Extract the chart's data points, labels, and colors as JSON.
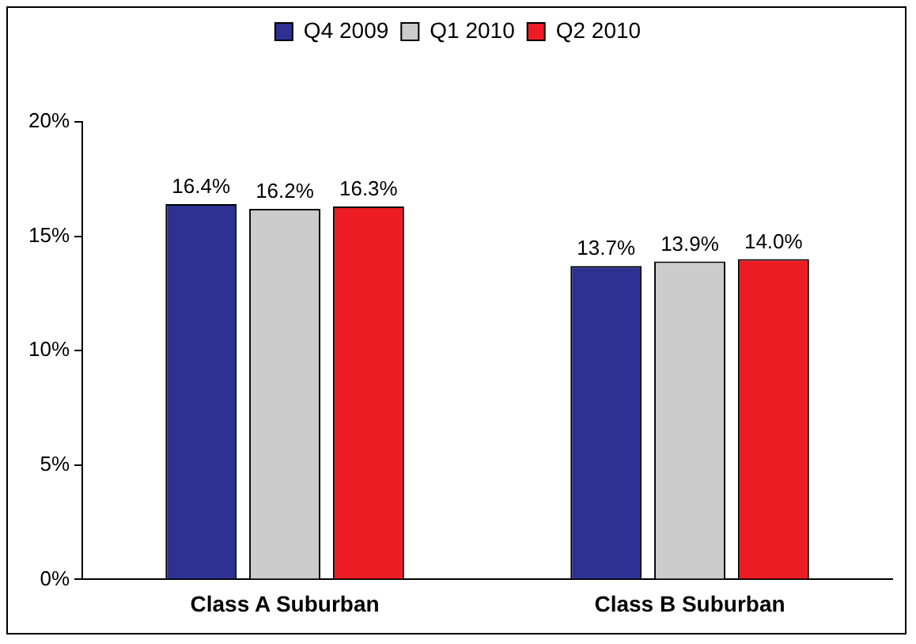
{
  "chart_data": {
    "type": "bar",
    "categories": [
      "Class A Suburban",
      "Class B Suburban"
    ],
    "series": [
      {
        "name": "Q4 2009",
        "color": "#2e3192",
        "values": [
          16.4,
          13.7
        ],
        "value_labels": [
          "16.4%",
          "13.7%"
        ]
      },
      {
        "name": "Q1 2010",
        "color": "#cccccc",
        "values": [
          16.2,
          13.9
        ],
        "value_labels": [
          "16.2%",
          "13.9%"
        ]
      },
      {
        "name": "Q2 2010",
        "color": "#ed1c24",
        "values": [
          16.3,
          14.0
        ],
        "value_labels": [
          "16.3%",
          "14.0%"
        ]
      }
    ],
    "ylim": [
      0,
      20
    ],
    "yticks": [
      {
        "value": 0,
        "label": "0%"
      },
      {
        "value": 5,
        "label": "5%"
      },
      {
        "value": 10,
        "label": "10%"
      },
      {
        "value": 15,
        "label": "15%"
      },
      {
        "value": 20,
        "label": "20%"
      }
    ],
    "grid": false,
    "legend": "top"
  }
}
